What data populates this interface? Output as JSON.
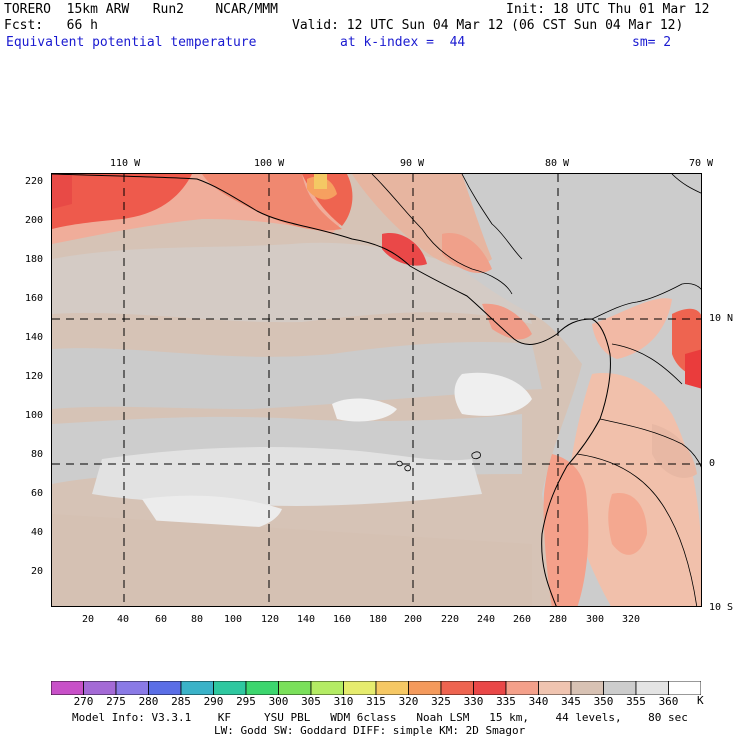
{
  "header": {
    "model": "TORERO  15km ARW   Run2    NCAR/MMM",
    "init": "Init: 18 UTC Thu 01 Mar 12",
    "fcst": "Fcst:   66 h",
    "valid": "Valid: 12 UTC Sun 04 Mar 12 (06 CST Sun 04 Mar 12)",
    "field": "Equivalent potential temperature",
    "kindex": "at k-index =  44",
    "smooth": "sm= 2"
  },
  "map": {
    "lon_labels": [
      "110 W",
      "100 W",
      "90 W",
      "80 W",
      "70 W"
    ],
    "lat_labels": [
      "10 N",
      "0",
      "10 S"
    ],
    "y_ticks": [
      "220",
      "200",
      "180",
      "160",
      "140",
      "120",
      "100",
      "80",
      "60",
      "40",
      "20"
    ],
    "x_ticks": [
      "20",
      "40",
      "60",
      "80",
      "100",
      "120",
      "140",
      "160",
      "180",
      "200",
      "220",
      "240",
      "260",
      "280",
      "300",
      "320"
    ]
  },
  "colorbar": {
    "labels": [
      "270",
      "275",
      "280",
      "285",
      "290",
      "295",
      "300",
      "305",
      "310",
      "315",
      "320",
      "325",
      "330",
      "335",
      "340",
      "345",
      "350",
      "355",
      "360"
    ],
    "unit": "K",
    "colors": [
      "#c850c8",
      "#a46ad6",
      "#8a7ae6",
      "#5a6ee6",
      "#3ab2c8",
      "#2ec8a0",
      "#3cd66e",
      "#7ae05a",
      "#b4ec64",
      "#e6ec6e",
      "#f6c864",
      "#f49a5c",
      "#ee6450",
      "#ea4848",
      "#f4a08a",
      "#f0c4b0",
      "#d8c2b4",
      "#cdcdcd",
      "#e4e4e4",
      "#ffffff"
    ]
  },
  "footer": {
    "line1": "Model Info: V3.3.1    KF     YSU PBL   WDM 6class   Noah LSM   15 km,    44 levels,    80 sec",
    "line2": "LW: Godd SW: Goddard DIFF: simple KM: 2D Smagor"
  }
}
